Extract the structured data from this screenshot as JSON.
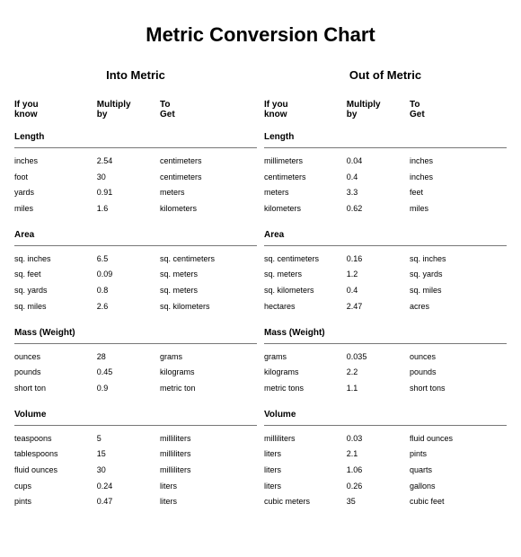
{
  "title": "Metric Conversion Chart",
  "columns": {
    "know_l1": "If you",
    "know_l2": "know",
    "mult_l1": "Multiply",
    "mult_l2": "by",
    "get_l1": "To",
    "get_l2": "Get"
  },
  "panels": [
    {
      "heading": "Into Metric",
      "sections": [
        {
          "label": "Length",
          "rows": [
            {
              "know": "inches",
              "mult": "2.54",
              "get": "centimeters"
            },
            {
              "know": "foot",
              "mult": "30",
              "get": "centimeters"
            },
            {
              "know": "yards",
              "mult": "0.91",
              "get": "meters"
            },
            {
              "know": "miles",
              "mult": "1.6",
              "get": "kilometers"
            }
          ]
        },
        {
          "label": "Area",
          "rows": [
            {
              "know": "sq. inches",
              "mult": "6.5",
              "get": "sq. centimeters"
            },
            {
              "know": "sq. feet",
              "mult": "0.09",
              "get": "sq. meters"
            },
            {
              "know": "sq. yards",
              "mult": "0.8",
              "get": "sq. meters"
            },
            {
              "know": "sq. miles",
              "mult": "2.6",
              "get": "sq. kilometers"
            }
          ]
        },
        {
          "label": "Mass (Weight)",
          "rows": [
            {
              "know": "ounces",
              "mult": "28",
              "get": "grams"
            },
            {
              "know": "pounds",
              "mult": "0.45",
              "get": "kilograms"
            },
            {
              "know": "short ton",
              "mult": "0.9",
              "get": "metric ton"
            }
          ]
        },
        {
          "label": "Volume",
          "rows": [
            {
              "know": "teaspoons",
              "mult": "5",
              "get": "milliliters"
            },
            {
              "know": "tablespoons",
              "mult": "15",
              "get": "milliliters"
            },
            {
              "know": "fluid ounces",
              "mult": "30",
              "get": "milliliters"
            },
            {
              "know": "cups",
              "mult": "0.24",
              "get": "liters"
            },
            {
              "know": "pints",
              "mult": "0.47",
              "get": "liters"
            }
          ]
        }
      ]
    },
    {
      "heading": "Out of Metric",
      "sections": [
        {
          "label": "Length",
          "rows": [
            {
              "know": "millimeters",
              "mult": "0.04",
              "get": "inches"
            },
            {
              "know": "centimeters",
              "mult": "0.4",
              "get": "inches"
            },
            {
              "know": "meters",
              "mult": "3.3",
              "get": "feet"
            },
            {
              "know": "kilometers",
              "mult": "0.62",
              "get": "miles"
            }
          ]
        },
        {
          "label": "Area",
          "rows": [
            {
              "know": "sq. centimeters",
              "mult": "0.16",
              "get": "sq. inches"
            },
            {
              "know": "sq. meters",
              "mult": "1.2",
              "get": "sq. yards"
            },
            {
              "know": "sq. kilometers",
              "mult": "0.4",
              "get": "sq. miles"
            },
            {
              "know": "hectares",
              "mult": "2.47",
              "get": "acres"
            }
          ]
        },
        {
          "label": "Mass (Weight)",
          "rows": [
            {
              "know": "grams",
              "mult": "0.035",
              "get": "ounces"
            },
            {
              "know": "kilograms",
              "mult": "2.2",
              "get": "pounds"
            },
            {
              "know": "metric tons",
              "mult": "1.1",
              "get": "short tons"
            }
          ]
        },
        {
          "label": "Volume",
          "rows": [
            {
              "know": "milliliters",
              "mult": "0.03",
              "get": "fluid ounces"
            },
            {
              "know": "liters",
              "mult": "2.1",
              "get": "pints"
            },
            {
              "know": "liters",
              "mult": "1.06",
              "get": "quarts"
            },
            {
              "know": "liters",
              "mult": "0.26",
              "get": "gallons"
            },
            {
              "know": "cubic meters",
              "mult": "35",
              "get": "cubic feet"
            }
          ]
        }
      ]
    }
  ]
}
